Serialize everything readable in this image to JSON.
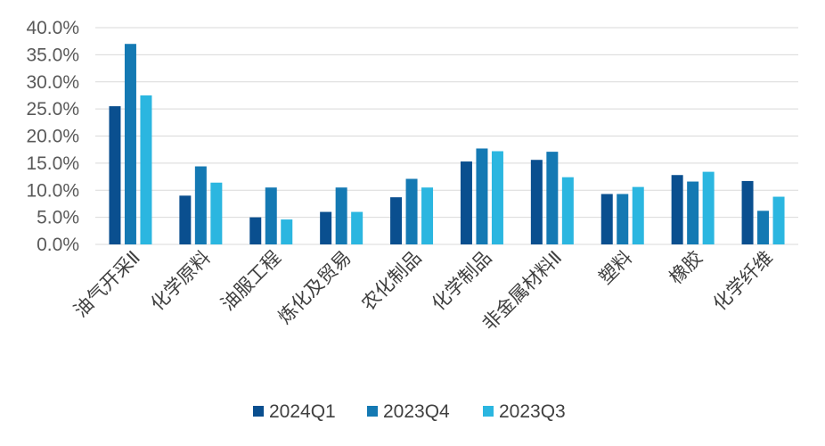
{
  "chart_data": {
    "type": "bar",
    "title": "",
    "xlabel": "",
    "ylabel": "",
    "ylim": [
      0,
      40
    ],
    "y_ticks": [
      "0.0%",
      "5.0%",
      "10.0%",
      "15.0%",
      "20.0%",
      "25.0%",
      "30.0%",
      "35.0%",
      "40.0%"
    ],
    "y_tick_values": [
      0,
      5,
      10,
      15,
      20,
      25,
      30,
      35,
      40
    ],
    "grid": true,
    "legend_position": "bottom",
    "categories": [
      "油气开采Ⅱ",
      "化学原料",
      "油服工程",
      "炼化及贸易",
      "农化制品",
      "化学制品",
      "非金属材料Ⅱ",
      "塑料",
      "橡胶",
      "化学纤维"
    ],
    "series": [
      {
        "name": "2024Q1",
        "color": "#0a4f8f",
        "values": [
          25.5,
          9.0,
          5.0,
          6.0,
          8.7,
          15.3,
          15.6,
          9.3,
          12.8,
          11.7
        ]
      },
      {
        "name": "2023Q4",
        "color": "#1479b3",
        "values": [
          37.0,
          14.4,
          10.5,
          10.5,
          12.1,
          17.7,
          17.1,
          9.3,
          11.6,
          6.2
        ]
      },
      {
        "name": "2023Q3",
        "color": "#2bb6e0",
        "values": [
          27.5,
          11.4,
          4.6,
          6.0,
          10.5,
          17.2,
          12.4,
          10.6,
          13.4,
          8.8
        ]
      }
    ]
  }
}
